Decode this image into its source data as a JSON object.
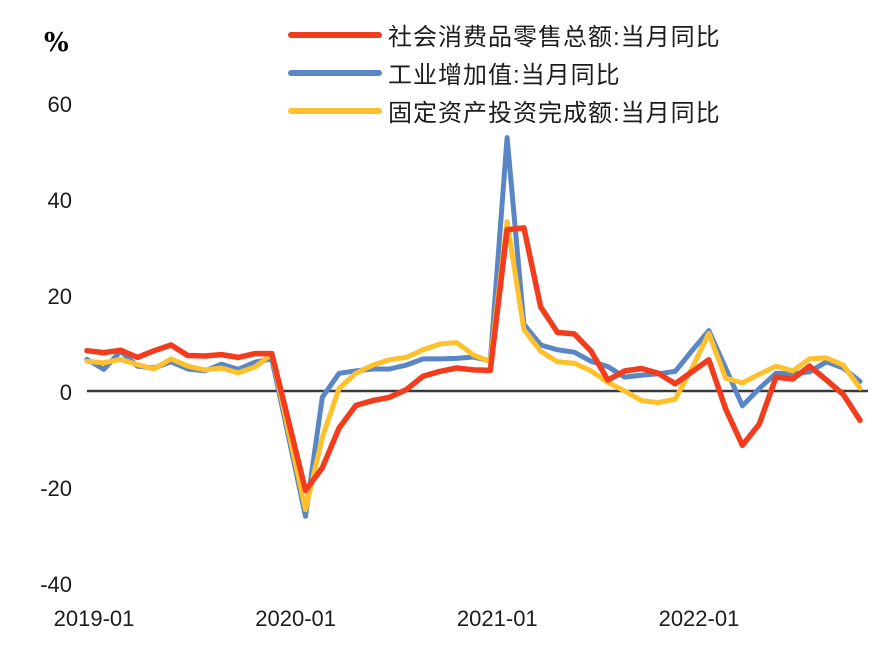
{
  "y_axis": {
    "unit_label": "%",
    "ticks": [
      60,
      40,
      20,
      0,
      -20,
      -40
    ]
  },
  "x_axis": {
    "ticks": [
      "2019-01",
      "2020-01",
      "2021-01",
      "2022-01"
    ]
  },
  "colors": {
    "retail": "#F23C1E",
    "industrial": "#5A86C5",
    "fai": "#FFC12B",
    "axis_line": "#3a3a3a",
    "text": "#1c1c1c"
  },
  "chart_data": {
    "type": "line",
    "title": "",
    "xlabel": "",
    "ylabel": "%",
    "ylim": [
      -40,
      60
    ],
    "grid": false,
    "legend_position": "top",
    "x": [
      "2019-01",
      "2019-02",
      "2019-03",
      "2019-04",
      "2019-05",
      "2019-06",
      "2019-07",
      "2019-08",
      "2019-09",
      "2019-10",
      "2019-11",
      "2019-12",
      "2020-01",
      "2020-02",
      "2020-03",
      "2020-04",
      "2020-05",
      "2020-06",
      "2020-07",
      "2020-08",
      "2020-09",
      "2020-10",
      "2020-11",
      "2020-12",
      "2021-01",
      "2021-02",
      "2021-03",
      "2021-04",
      "2021-05",
      "2021-06",
      "2021-07",
      "2021-08",
      "2021-09",
      "2021-10",
      "2021-11",
      "2021-12",
      "2022-01",
      "2022-02",
      "2022-03",
      "2022-04",
      "2022-05",
      "2022-06",
      "2022-07",
      "2022-08",
      "2022-09",
      "2022-10",
      "2022-11"
    ],
    "series": [
      {
        "name": "社会消费品零售总额:当月同比",
        "color": "#F23C1E",
        "values": [
          8.6,
          8.2,
          8.7,
          7.2,
          8.6,
          9.8,
          7.6,
          7.5,
          7.8,
          7.2,
          8.0,
          8.0,
          -6.2,
          -20.5,
          -15.8,
          -7.5,
          -2.8,
          -1.8,
          -1.1,
          0.5,
          3.3,
          4.3,
          5.0,
          4.6,
          4.5,
          33.8,
          34.2,
          17.7,
          12.4,
          12.1,
          8.5,
          2.5,
          4.4,
          4.9,
          3.9,
          1.7,
          4.2,
          6.7,
          -3.5,
          -11.1,
          -6.7,
          3.1,
          2.7,
          5.4,
          2.5,
          -0.5,
          -5.9
        ]
      },
      {
        "name": "工业增加值:当月同比",
        "color": "#5A86C5",
        "values": [
          6.8,
          4.7,
          8.5,
          5.4,
          5.0,
          6.3,
          4.8,
          4.4,
          5.8,
          4.7,
          6.2,
          6.9,
          -9.5,
          -25.9,
          -1.1,
          3.9,
          4.4,
          4.8,
          4.8,
          5.6,
          6.9,
          6.9,
          7.0,
          7.3,
          6.5,
          53.0,
          14.1,
          9.8,
          8.8,
          8.3,
          6.4,
          5.3,
          3.1,
          3.5,
          3.8,
          4.3,
          8.6,
          12.8,
          5.0,
          -2.9,
          0.7,
          3.9,
          3.8,
          4.2,
          6.3,
          5.0,
          2.2
        ]
      },
      {
        "name": "固定资产投资完成额:当月同比",
        "color": "#FFC12B",
        "values": [
          6.4,
          6.1,
          6.8,
          5.7,
          4.8,
          6.9,
          5.4,
          4.6,
          5.0,
          4.0,
          5.2,
          7.9,
          -8.3,
          -24.5,
          -9.5,
          0.8,
          3.9,
          5.6,
          6.7,
          7.2,
          8.8,
          10.0,
          10.3,
          7.7,
          6.3,
          35.5,
          13.0,
          8.5,
          6.3,
          6.0,
          4.4,
          2.0,
          0.2,
          -1.8,
          -2.2,
          -1.5,
          5.0,
          12.2,
          2.9,
          1.9,
          3.7,
          5.4,
          4.4,
          6.9,
          7.1,
          5.6,
          0.8
        ]
      }
    ]
  }
}
